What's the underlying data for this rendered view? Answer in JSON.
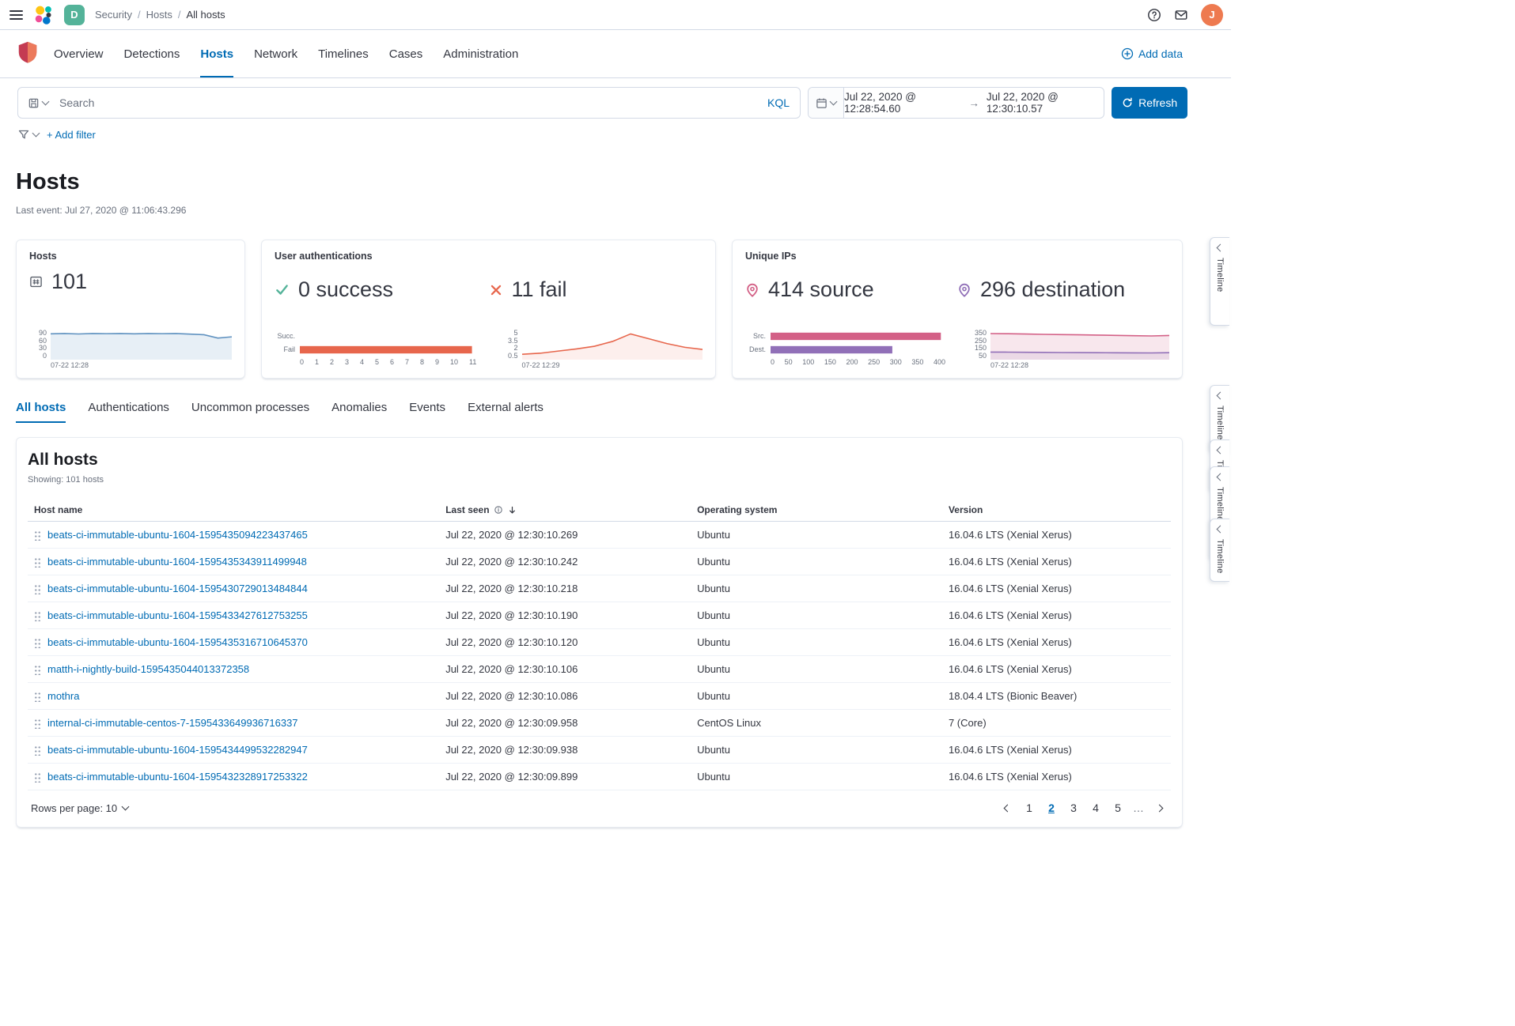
{
  "colors": {
    "primary": "#006BB4",
    "success": "#54B399",
    "danger": "#E7664C",
    "source_pink": "#D36086",
    "destination_purple": "#9170B8",
    "hosts_line": "#6092C0",
    "space_badge": "#54B399",
    "avatar": "#EE7A50"
  },
  "topbar": {
    "breadcrumbs": [
      "Security",
      "Hosts",
      "All hosts"
    ],
    "breadcrumb_separator": "/",
    "space_initial": "D",
    "user_initial": "J"
  },
  "nav": {
    "items": [
      {
        "label": "Overview"
      },
      {
        "label": "Detections"
      },
      {
        "label": "Hosts"
      },
      {
        "label": "Network"
      },
      {
        "label": "Timelines"
      },
      {
        "label": "Cases"
      },
      {
        "label": "Administration"
      }
    ],
    "add_data": "Add data"
  },
  "query": {
    "search_placeholder": "Search",
    "kql": "KQL",
    "date_from": "Jul 22, 2020 @ 12:28:54.60",
    "date_arrow": "→",
    "date_to": "Jul 22, 2020 @ 12:30:10.57",
    "refresh": "Refresh",
    "add_filter": "+ Add filter"
  },
  "page": {
    "title": "Hosts",
    "last_event": "Last event: Jul 27, 2020 @ 11:06:43.296"
  },
  "kpi": {
    "hosts": {
      "label": "Hosts",
      "value": "101",
      "y_ticks": [
        "90",
        "60",
        "30",
        "0"
      ],
      "x_label": "07-22 12:28",
      "chart": {
        "type": "area",
        "max": 100,
        "series": [
          {
            "color": "#6092C0",
            "fill": "rgba(96,146,192,0.15)",
            "values": [
              86,
              87,
              85.5,
              87,
              86.5,
              87,
              86,
              87,
              86.5,
              87,
              85,
              83,
              72,
              76
            ]
          }
        ]
      }
    },
    "auth": {
      "label": "User authentications",
      "success": {
        "value": "0 success"
      },
      "fail": {
        "value": "11 fail"
      },
      "bars": {
        "type": "hbar",
        "max": 11.3,
        "bars": [
          {
            "label": "Succ.",
            "value": 0,
            "color": "#E7664C"
          },
          {
            "label": "Fail",
            "value": 11,
            "color": "#E7664C"
          }
        ]
      },
      "bar_ticks": [
        "0",
        "1",
        "2",
        "3",
        "4",
        "5",
        "6",
        "7",
        "8",
        "9",
        "10",
        "11"
      ],
      "line": {
        "type": "lines",
        "max": 5.6,
        "series": [
          {
            "color": "#E7664C",
            "fill": "rgba(231,102,76,0.10)",
            "values": [
              1,
              1.2,
              1.6,
              2,
              2.5,
              3.4,
              4.8,
              3.9,
              3,
              2.3,
              1.9
            ]
          }
        ]
      },
      "line_y_ticks": [
        "5",
        "3.5",
        "2",
        "0.5"
      ],
      "line_x_label": "07-22 12:29"
    },
    "ips": {
      "label": "Unique IPs",
      "source": {
        "value": "414 source"
      },
      "destination": {
        "value": "296 destination"
      },
      "bars": {
        "type": "hbar",
        "max": 425,
        "bars": [
          {
            "label": "Src.",
            "value": 414,
            "color": "#D36086"
          },
          {
            "label": "Dest.",
            "value": 296,
            "color": "#9170B8"
          }
        ]
      },
      "bar_ticks": [
        "0",
        "50",
        "100",
        "150",
        "200",
        "250",
        "300",
        "350",
        "400"
      ],
      "area": {
        "type": "lines",
        "max": 380,
        "series": [
          {
            "color": "#D36086",
            "fill": "rgba(211,96,134,0.15)",
            "values": [
              330,
              328,
              324,
              320,
              317,
              314,
              311,
              307,
              303,
              300,
              306
            ]
          },
          {
            "color": "#9170B8",
            "fill": "rgba(145,112,184,0.12)",
            "values": [
              96,
              95,
              93,
              92,
              90,
              89,
              88,
              87,
              86,
              85,
              88
            ]
          }
        ]
      },
      "area_y_ticks": [
        "350",
        "250",
        "150",
        "50"
      ],
      "area_x_label": "07-22 12:28"
    }
  },
  "tabs": {
    "items": [
      {
        "label": "All hosts"
      },
      {
        "label": "Authentications"
      },
      {
        "label": "Uncommon processes"
      },
      {
        "label": "Anomalies"
      },
      {
        "label": "Events"
      },
      {
        "label": "External alerts"
      }
    ]
  },
  "table": {
    "title": "All hosts",
    "showing": "Showing: 101 hosts",
    "columns": [
      "Host name",
      "Last seen",
      "Operating system",
      "Version"
    ],
    "rows": [
      {
        "host": "beats-ci-immutable-ubuntu-1604-1595435094223437465",
        "last_seen": "Jul 22, 2020 @ 12:30:10.269",
        "os": "Ubuntu",
        "version": "16.04.6 LTS (Xenial Xerus)"
      },
      {
        "host": "beats-ci-immutable-ubuntu-1604-1595435343911499948",
        "last_seen": "Jul 22, 2020 @ 12:30:10.242",
        "os": "Ubuntu",
        "version": "16.04.6 LTS (Xenial Xerus)"
      },
      {
        "host": "beats-ci-immutable-ubuntu-1604-1595430729013484844",
        "last_seen": "Jul 22, 2020 @ 12:30:10.218",
        "os": "Ubuntu",
        "version": "16.04.6 LTS (Xenial Xerus)"
      },
      {
        "host": "beats-ci-immutable-ubuntu-1604-1595433427612753255",
        "last_seen": "Jul 22, 2020 @ 12:30:10.190",
        "os": "Ubuntu",
        "version": "16.04.6 LTS (Xenial Xerus)"
      },
      {
        "host": "beats-ci-immutable-ubuntu-1604-1595435316710645370",
        "last_seen": "Jul 22, 2020 @ 12:30:10.120",
        "os": "Ubuntu",
        "version": "16.04.6 LTS (Xenial Xerus)"
      },
      {
        "host": "matth-i-nightly-build-1595435044013372358",
        "last_seen": "Jul 22, 2020 @ 12:30:10.106",
        "os": "Ubuntu",
        "version": "16.04.6 LTS (Xenial Xerus)"
      },
      {
        "host": "mothra",
        "last_seen": "Jul 22, 2020 @ 12:30:10.086",
        "os": "Ubuntu",
        "version": "18.04.4 LTS (Bionic Beaver)"
      },
      {
        "host": "internal-ci-immutable-centos-7-1595433649936716337",
        "last_seen": "Jul 22, 2020 @ 12:30:09.958",
        "os": "CentOS Linux",
        "version": "7 (Core)"
      },
      {
        "host": "beats-ci-immutable-ubuntu-1604-1595434499532282947",
        "last_seen": "Jul 22, 2020 @ 12:30:09.938",
        "os": "Ubuntu",
        "version": "16.04.6 LTS (Xenial Xerus)"
      },
      {
        "host": "beats-ci-immutable-ubuntu-1604-1595432328917253322",
        "last_seen": "Jul 22, 2020 @ 12:30:09.899",
        "os": "Ubuntu",
        "version": "16.04.6 LTS (Xenial Xerus)"
      }
    ],
    "rows_per_page": "Rows per page: 10",
    "pagination": {
      "pages": [
        "1",
        "2",
        "3",
        "4",
        "5"
      ],
      "active": "2",
      "ellipsis": "…"
    }
  },
  "timeline": {
    "tabs": [
      "Timeline",
      "Timeline",
      "Timeline",
      "Timeline",
      "Timeline"
    ]
  }
}
